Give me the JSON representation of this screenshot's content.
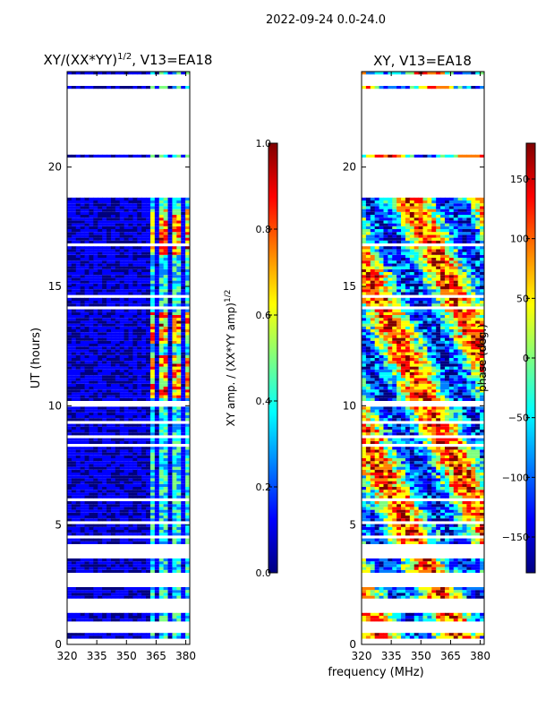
{
  "figure_title": "2022-09-24 0.0-24.0",
  "colors": {
    "jet": [
      "#00007f",
      "#0000ff",
      "#007fff",
      "#00ffff",
      "#7fff7f",
      "#ffff00",
      "#ff7f00",
      "#ff0000",
      "#7f0000"
    ],
    "frame": "#000000",
    "background": "#ffffff"
  },
  "chart_data": [
    {
      "type": "heatmap",
      "title": "XY/(XX*YY)",
      "title_exponent": "1/2",
      "title_suffix": ", V13=EA18",
      "xlabel": "",
      "ylabel": "UT (hours)",
      "x_ticks": [
        320,
        335,
        350,
        365,
        380
      ],
      "y_ticks": [
        0,
        5,
        10,
        15,
        20
      ],
      "xlim": [
        320,
        382
      ],
      "ylim": [
        0,
        24
      ],
      "colorbar": {
        "label": "XY amp. / (XX*YY amp)",
        "label_exponent": "1/2",
        "ticks": [
          "0.0",
          "0.2",
          "0.4",
          "0.6",
          "0.8",
          "1.0"
        ],
        "tick_values": [
          0.0,
          0.2,
          0.4,
          0.6,
          0.8,
          1.0
        ],
        "range": [
          0.0,
          1.0
        ]
      },
      "data_segments_hours": [
        [
          0.2,
          0.4
        ],
        [
          0.9,
          1.3
        ],
        [
          1.9,
          2.4
        ],
        [
          2.9,
          3.6
        ],
        [
          4.1,
          9.9
        ],
        [
          10.1,
          18.6
        ],
        [
          20.3,
          20.5
        ],
        [
          23.2,
          23.4
        ],
        [
          23.8,
          24.0
        ]
      ],
      "bright_channel_band_MHz": [
        361,
        380
      ],
      "high_amplitude_intervals_hours": [
        [
          12.5,
          13.8
        ],
        [
          16.3,
          18.2
        ],
        [
          10.2,
          12.0
        ]
      ]
    },
    {
      "type": "heatmap",
      "title": "XY, V13=EA18",
      "xlabel": "frequency (MHz)",
      "ylabel": "",
      "x_ticks": [
        320,
        335,
        350,
        365,
        380
      ],
      "y_ticks": [
        0,
        5,
        10,
        15,
        20
      ],
      "xlim": [
        320,
        382
      ],
      "ylim": [
        0,
        24
      ],
      "colorbar": {
        "label": "phase (deg.)",
        "ticks": [
          "−150",
          "−100",
          "−50",
          "0",
          "50",
          "100",
          "150"
        ],
        "tick_values": [
          -150,
          -100,
          -50,
          0,
          50,
          100,
          150
        ],
        "range": [
          -180,
          180
        ]
      },
      "data_segments_hours": [
        [
          0.2,
          0.4
        ],
        [
          0.9,
          1.3
        ],
        [
          1.9,
          2.4
        ],
        [
          2.9,
          3.6
        ],
        [
          4.1,
          9.9
        ],
        [
          10.1,
          18.6
        ],
        [
          20.3,
          20.5
        ],
        [
          23.2,
          23.4
        ],
        [
          23.8,
          24.0
        ]
      ]
    }
  ]
}
